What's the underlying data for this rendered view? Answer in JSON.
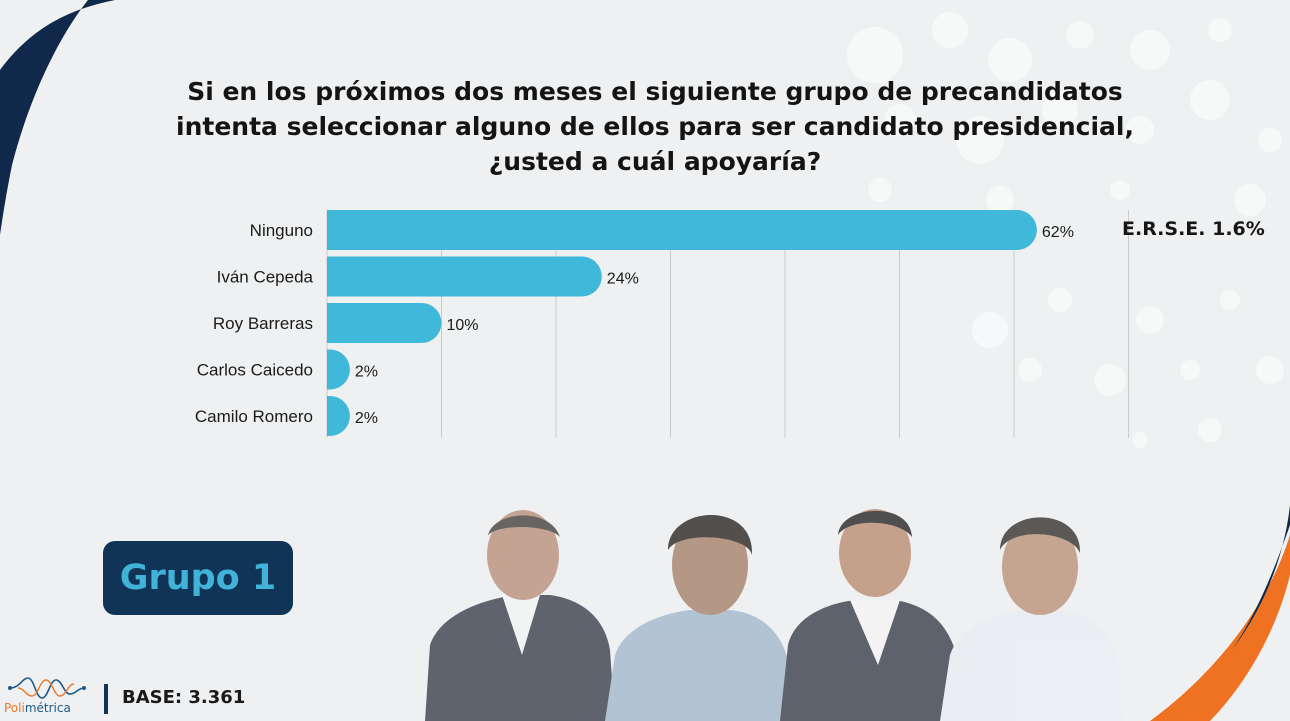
{
  "title_lines": [
    "Si en los próximos dos meses el siguiente grupo de precandidatos",
    "intenta seleccionar alguno de ellos para ser candidato presidencial,",
    "¿usted a cuál apoyaría?"
  ],
  "erse_label": "E.R.S.E. 1.6%",
  "group_label": "Grupo 1",
  "base_label": "BASE: 3.361",
  "logo": {
    "name_a": "Poli",
    "name_b": "métrica"
  },
  "colors": {
    "bar": "#3fb8d9",
    "navy": "#0f3456",
    "orange": "#ef7222",
    "background": "#eef0f1"
  },
  "chart_data": {
    "type": "bar",
    "orientation": "horizontal",
    "title": "Si en los próximos dos meses el siguiente grupo de precandidatos intenta seleccionar alguno de ellos para ser candidato presidencial, ¿usted a cuál apoyaría?",
    "categories": [
      "Ninguno",
      "Iván Cepeda",
      "Roy Barreras",
      "Carlos Caicedo",
      "Camilo Romero"
    ],
    "values": [
      62,
      24,
      10,
      2,
      2
    ],
    "value_labels": [
      "62%",
      "24%",
      "10%",
      "2%",
      "2%"
    ],
    "unit": "%",
    "xlim": [
      0,
      70
    ],
    "grid": true,
    "xlabel": "",
    "ylabel": ""
  }
}
